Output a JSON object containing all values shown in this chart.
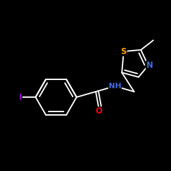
{
  "background_color": "#000000",
  "bond_color": "#ffffff",
  "atom_colors": {
    "I": "#9400d3",
    "N": "#4169e1",
    "O": "#ff0000",
    "S": "#ffa500",
    "C": "#ffffff",
    "H": "#ffffff"
  },
  "bond_width": 1.4,
  "font_size_atom": 8.5,
  "figsize": [
    2.5,
    2.5
  ],
  "dpi": 100
}
